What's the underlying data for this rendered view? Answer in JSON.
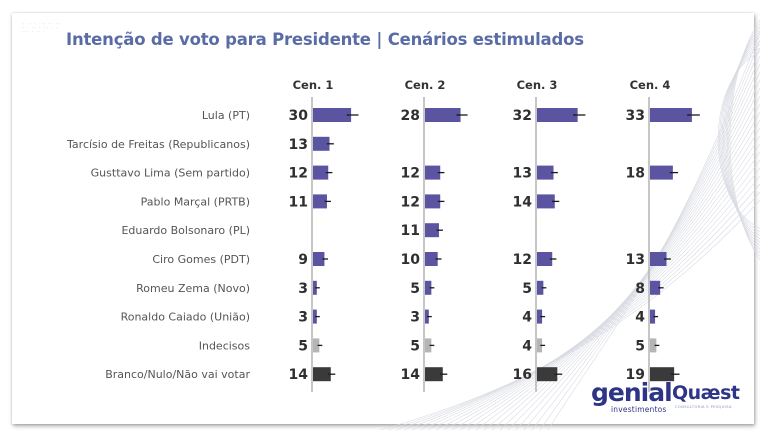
{
  "header": {
    "title": "Intenção de voto para Presidente | Cenários estimulados",
    "decorative_text": "· ·· · ··· ·· ·· · · ·· · ·· · · ··· · ·· ·"
  },
  "logos": {
    "genial": {
      "name": "genial",
      "subtitle": "investimentos"
    },
    "quaest": {
      "name": "Quæst",
      "subtitle": "CONSULTORIA E PESQUISA"
    }
  },
  "colors": {
    "candidate_bar": "#5b55a1",
    "undecided_bar": "#b5b5b5",
    "blank_null_bar": "#3a3a3a",
    "axis_line": "#b8b8b8",
    "error_bar": "#1a1a1a",
    "title": "#5a6ca6"
  },
  "chart_data": {
    "type": "bar",
    "orientation": "horizontal",
    "title": "Intenção de voto para Presidente | Cenários estimulados",
    "categories": [
      "Lula (PT)",
      "Tarcísio de Freitas (Republicanos)",
      "Gusttavo Lima (Sem partido)",
      "Pablo Marçal (PRTB)",
      "Eduardo Bolsonaro (PL)",
      "Ciro Gomes (PDT)",
      "Romeu Zema (Novo)",
      "Ronaldo Caiado (União)",
      "Indecisos",
      "Branco/Nulo/Não vai votar"
    ],
    "category_kinds": [
      "candidate",
      "candidate",
      "candidate",
      "candidate",
      "candidate",
      "candidate",
      "candidate",
      "candidate",
      "undecided",
      "blank_null"
    ],
    "series": [
      {
        "name": "Cen. 1",
        "values": [
          30,
          13,
          12,
          11,
          null,
          9,
          3,
          3,
          5,
          14
        ]
      },
      {
        "name": "Cen. 2",
        "values": [
          28,
          null,
          12,
          12,
          11,
          10,
          5,
          3,
          5,
          14
        ]
      },
      {
        "name": "Cen. 3",
        "values": [
          32,
          null,
          13,
          14,
          null,
          12,
          5,
          4,
          4,
          16
        ]
      },
      {
        "name": "Cen. 4",
        "values": [
          33,
          null,
          18,
          null,
          null,
          13,
          8,
          4,
          5,
          19
        ]
      }
    ],
    "unit": "%",
    "error_bars": true,
    "xlabel": "",
    "ylabel": "",
    "xlim": [
      0,
      40
    ],
    "grid": false,
    "legend": "none"
  }
}
